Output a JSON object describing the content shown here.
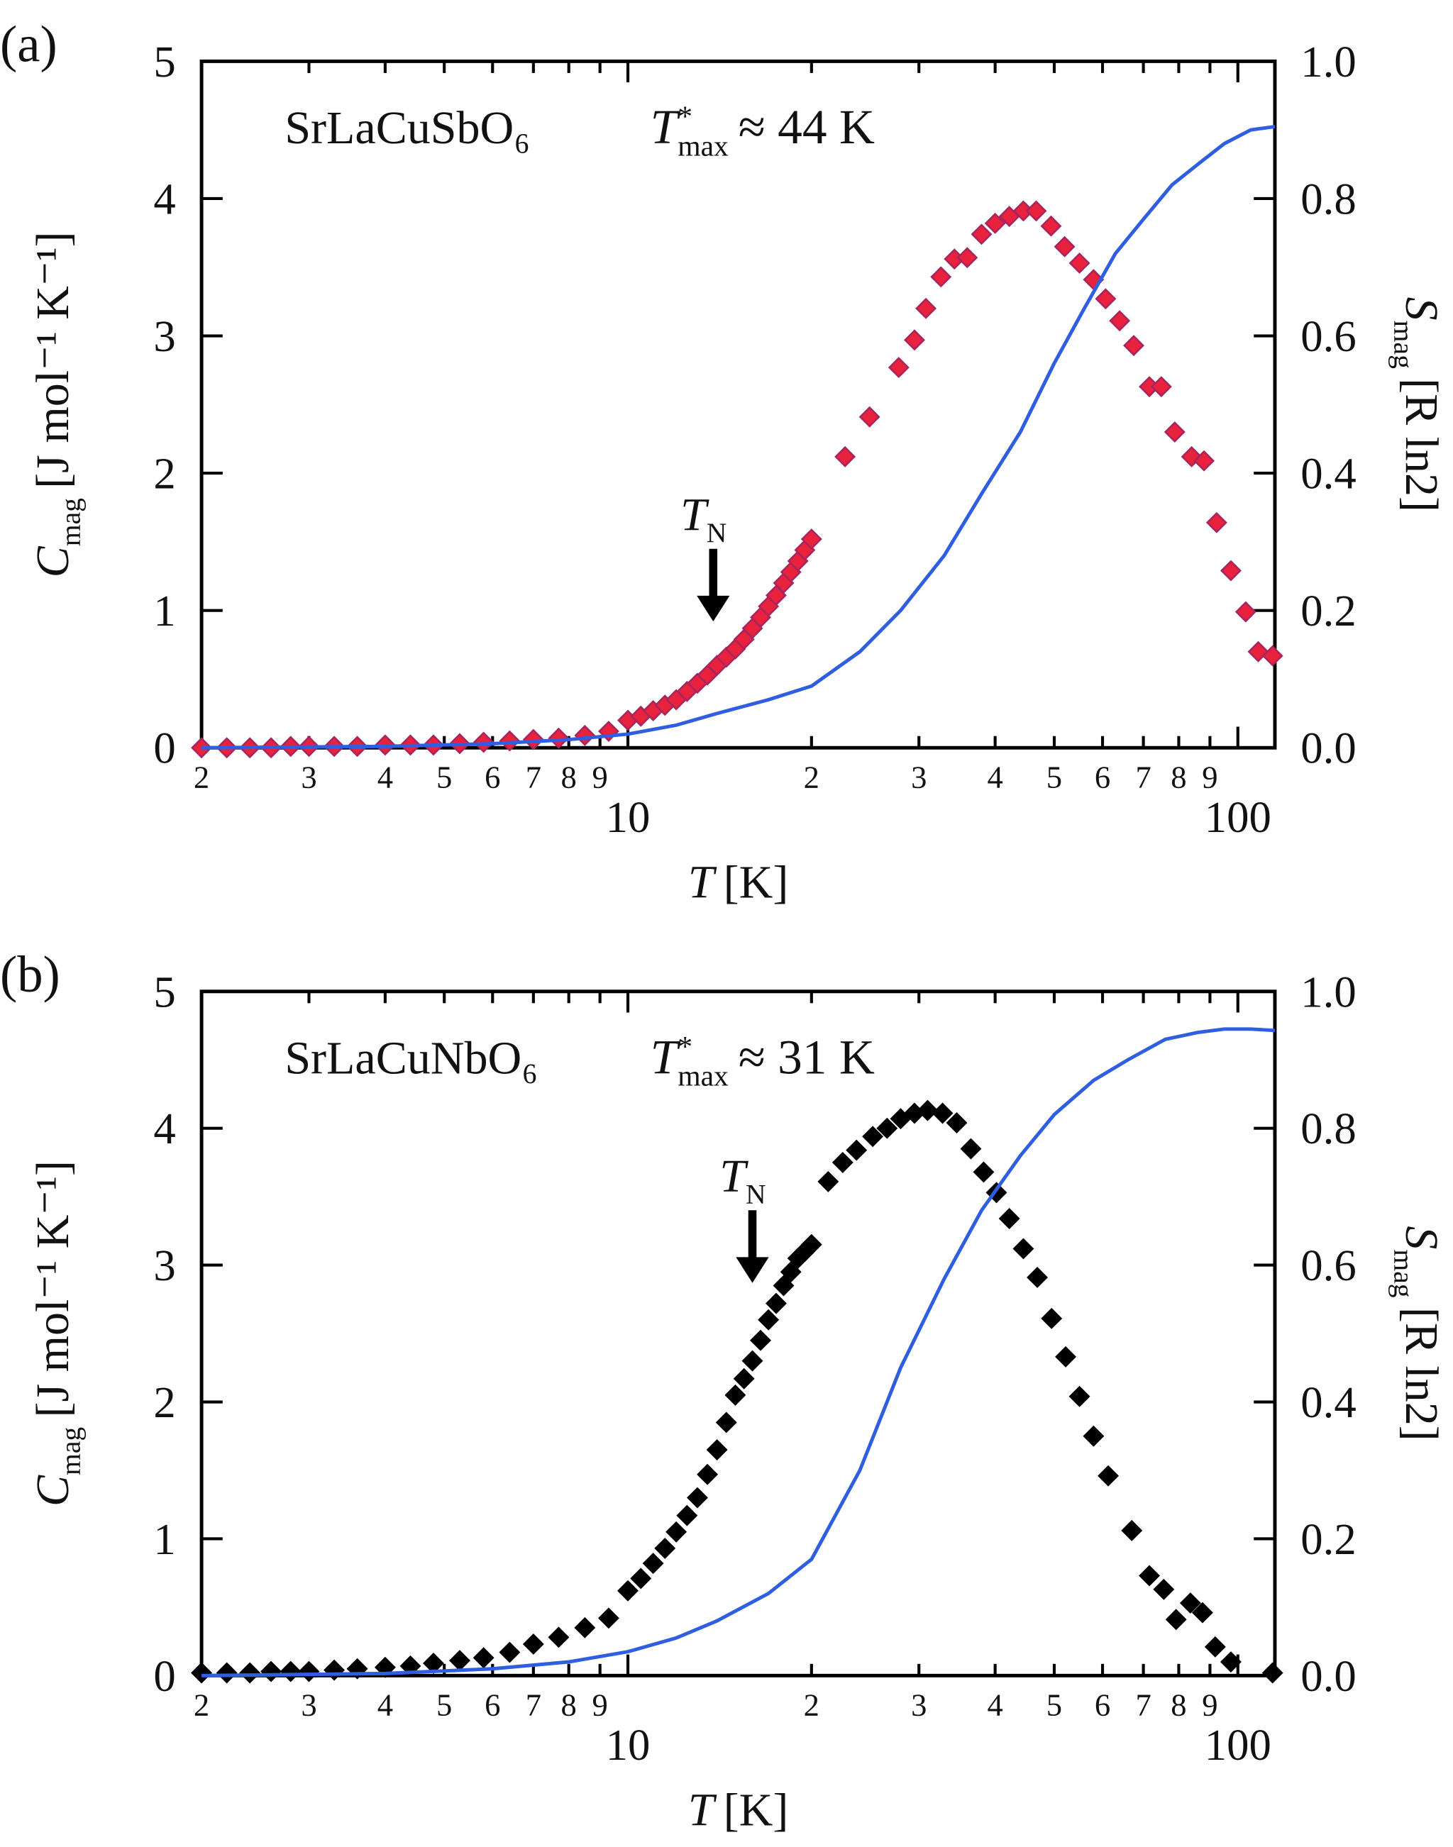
{
  "chart_data": [
    {
      "type": "scatter",
      "label": "(a)",
      "title": "SrLaCuSbO₆",
      "annotation": {
        "symbol": "T",
        "sup": "*",
        "sub": "max",
        "text": "≈ 44 K"
      },
      "markers": [
        {
          "symbol": "T",
          "sub": "N",
          "x": 13.8,
          "y": 0.92
        }
      ],
      "xlabel": {
        "symbol": "T",
        "unit": "[K]"
      },
      "ylabel": {
        "symbol": "C",
        "sub": "mag",
        "unit": "[J mol⁻¹ K⁻¹]"
      },
      "y2label": {
        "symbol": "S",
        "sub": "mag",
        "unit": "[R ln2]"
      },
      "xscale": "log",
      "xlim": [
        2,
        115
      ],
      "xticks": [
        2,
        3,
        4,
        5,
        6,
        7,
        8,
        9,
        10,
        {
          "value": 20,
          "label": "2"
        },
        {
          "value": 30,
          "label": "3"
        },
        {
          "value": 40,
          "label": "4"
        },
        {
          "value": 50,
          "label": "5"
        },
        {
          "value": 60,
          "label": "6"
        },
        {
          "value": 70,
          "label": "7"
        },
        {
          "value": 80,
          "label": "8"
        },
        {
          "value": 90,
          "label": "9"
        },
        100
      ],
      "ylim": [
        0,
        5
      ],
      "yticks": [
        0,
        1,
        2,
        3,
        4,
        5
      ],
      "y2lim": [
        0,
        1
      ],
      "y2ticks": [
        {
          "value": 0,
          "label": "0.0"
        },
        0.2,
        0.4,
        0.6,
        0.8,
        {
          "value": 1,
          "label": "1.0"
        }
      ],
      "series": [
        {
          "kind": "markers",
          "color": "#e8213c",
          "edge": "#a8245e",
          "x": [
            2,
            2.2,
            2.4,
            2.6,
            2.8,
            3,
            3.3,
            3.6,
            4,
            4.4,
            4.8,
            5.3,
            5.8,
            6.4,
            7,
            7.7,
            8.5,
            9.3,
            10,
            10.5,
            11,
            11.5,
            12,
            12.5,
            13,
            13.5,
            14,
            14.5,
            15,
            15.5,
            16,
            16.5,
            17,
            17.5,
            18,
            18.5,
            19,
            19.5,
            20,
            22.7,
            24.9,
            27.8,
            29.5,
            30.8,
            32.6,
            34.3,
            36,
            38,
            40,
            42.2,
            44.5,
            46.7,
            49.4,
            52,
            55,
            58,
            60.7,
            64,
            67.5,
            71.6,
            74.9,
            78.8,
            84,
            88,
            92.3,
            97.4,
            103,
            108,
            114
          ],
          "values": [
            0,
            0,
            0,
            0,
            0.01,
            0.01,
            0.01,
            0.01,
            0.02,
            0.02,
            0.02,
            0.03,
            0.04,
            0.05,
            0.06,
            0.07,
            0.09,
            0.12,
            0.2,
            0.23,
            0.27,
            0.31,
            0.35,
            0.41,
            0.47,
            0.53,
            0.6,
            0.66,
            0.72,
            0.79,
            0.87,
            0.95,
            1.03,
            1.11,
            1.2,
            1.28,
            1.36,
            1.44,
            1.52,
            2.12,
            2.41,
            2.77,
            2.97,
            3.2,
            3.43,
            3.56,
            3.57,
            3.74,
            3.82,
            3.87,
            3.91,
            3.91,
            3.8,
            3.65,
            3.53,
            3.41,
            3.27,
            3.11,
            2.93,
            2.63,
            2.63,
            2.3,
            2.12,
            2.09,
            1.64,
            1.29,
            0.99,
            0.7,
            0.67
          ]
        },
        {
          "kind": "line",
          "axis": "y2",
          "color": "#2f5fe0",
          "x": [
            2,
            4,
            6,
            8,
            10,
            12,
            14,
            17,
            20,
            24,
            28,
            33,
            38,
            44,
            50,
            56,
            63,
            70,
            78,
            86,
            95,
            105,
            115
          ],
          "values": [
            0,
            0.002,
            0.006,
            0.012,
            0.02,
            0.033,
            0.05,
            0.07,
            0.09,
            0.14,
            0.2,
            0.28,
            0.37,
            0.46,
            0.56,
            0.64,
            0.72,
            0.77,
            0.82,
            0.85,
            0.88,
            0.9,
            0.905
          ]
        }
      ]
    },
    {
      "type": "scatter",
      "label": "(b)",
      "title": "SrLaCuNbO₆",
      "annotation": {
        "symbol": "T",
        "sup": "*",
        "sub": "max",
        "text": "≈ 31 K"
      },
      "markers": [
        {
          "symbol": "T",
          "sub": "N",
          "x": 16,
          "y": 2.87
        }
      ],
      "xlabel": {
        "symbol": "T",
        "unit": "[K]"
      },
      "ylabel": {
        "symbol": "C",
        "sub": "mag",
        "unit": "[J mol⁻¹ K⁻¹]"
      },
      "y2label": {
        "symbol": "S",
        "sub": "mag",
        "unit": "[R ln2]"
      },
      "xscale": "log",
      "xlim": [
        2,
        115
      ],
      "xticks": [
        2,
        3,
        4,
        5,
        6,
        7,
        8,
        9,
        10,
        {
          "value": 20,
          "label": "2"
        },
        {
          "value": 30,
          "label": "3"
        },
        {
          "value": 40,
          "label": "4"
        },
        {
          "value": 50,
          "label": "5"
        },
        {
          "value": 60,
          "label": "6"
        },
        {
          "value": 70,
          "label": "7"
        },
        {
          "value": 80,
          "label": "8"
        },
        {
          "value": 90,
          "label": "9"
        },
        100
      ],
      "ylim": [
        0,
        5
      ],
      "yticks": [
        0,
        1,
        2,
        3,
        4,
        5
      ],
      "y2lim": [
        0,
        1
      ],
      "y2ticks": [
        {
          "value": 0,
          "label": "0.0"
        },
        0.2,
        0.4,
        0.6,
        0.8,
        {
          "value": 1,
          "label": "1.0"
        }
      ],
      "series": [
        {
          "kind": "markers",
          "color": "#000000",
          "edge": "#000000",
          "x": [
            2,
            2.2,
            2.4,
            2.6,
            2.8,
            3,
            3.3,
            3.6,
            4,
            4.4,
            4.8,
            5.3,
            5.8,
            6.4,
            7,
            7.7,
            8.5,
            9.3,
            10,
            10.5,
            11,
            11.5,
            12,
            12.5,
            13,
            13.5,
            14,
            14.5,
            15,
            15.5,
            16,
            16.5,
            17,
            17.5,
            18,
            18.5,
            19,
            19.5,
            20,
            21.3,
            22.5,
            23.7,
            25.2,
            26.6,
            28,
            29.5,
            31,
            32.8,
            34.6,
            36.5,
            38.3,
            40.2,
            42.2,
            44.5,
            46.9,
            49.5,
            52.2,
            55,
            58,
            61.3,
            67,
            71.6,
            75.6,
            79.2,
            83.6,
            87.5,
            91.8,
            97.4,
            114
          ],
          "values": [
            0.02,
            0.02,
            0.02,
            0.03,
            0.03,
            0.03,
            0.04,
            0.05,
            0.06,
            0.07,
            0.09,
            0.11,
            0.13,
            0.17,
            0.23,
            0.28,
            0.35,
            0.42,
            0.62,
            0.71,
            0.82,
            0.93,
            1.05,
            1.17,
            1.3,
            1.47,
            1.65,
            1.85,
            2.05,
            2.17,
            2.3,
            2.45,
            2.6,
            2.72,
            2.85,
            2.95,
            3.05,
            3.1,
            3.15,
            3.61,
            3.75,
            3.84,
            3.94,
            4.0,
            4.07,
            4.11,
            4.13,
            4.11,
            4.04,
            3.85,
            3.68,
            3.53,
            3.34,
            3.12,
            2.91,
            2.61,
            2.33,
            2.04,
            1.75,
            1.46,
            1.06,
            0.73,
            0.63,
            0.41,
            0.53,
            0.46,
            0.21,
            0.1,
            0.02
          ]
        },
        {
          "kind": "line",
          "axis": "y2",
          "color": "#2f5fe0",
          "x": [
            2,
            4,
            6,
            8,
            10,
            12,
            14,
            17,
            20,
            24,
            28,
            33,
            38,
            44,
            50,
            58,
            66,
            76,
            86,
            95,
            105,
            115
          ],
          "values": [
            0,
            0.003,
            0.01,
            0.02,
            0.035,
            0.055,
            0.08,
            0.12,
            0.17,
            0.3,
            0.45,
            0.58,
            0.68,
            0.76,
            0.82,
            0.87,
            0.9,
            0.93,
            0.94,
            0.945,
            0.945,
            0.943
          ]
        }
      ]
    }
  ]
}
